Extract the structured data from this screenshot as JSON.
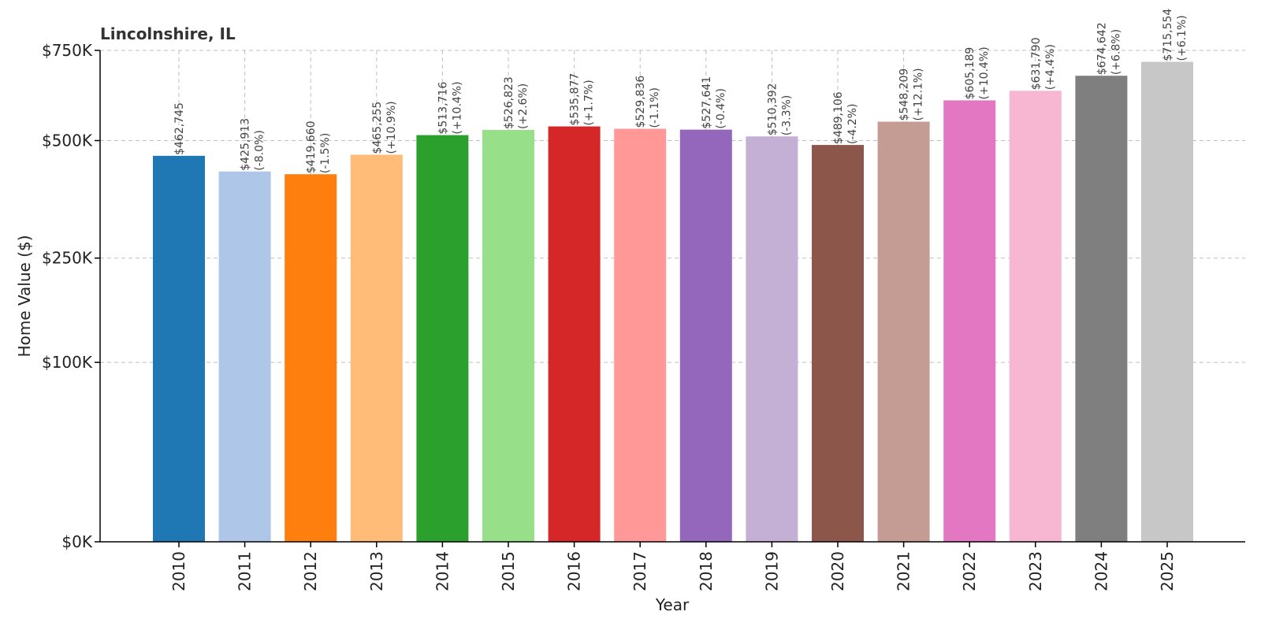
{
  "chart_data": {
    "type": "bar",
    "title": "Lincolnshire, IL",
    "xlabel": "Year",
    "ylabel": "Home Value ($)",
    "ylim": [
      0,
      750000
    ],
    "y_scale": "sqrt",
    "y_ticks": [
      {
        "value": 0,
        "label": "$0K"
      },
      {
        "value": 100000,
        "label": "$100K"
      },
      {
        "value": 250000,
        "label": "$250K"
      },
      {
        "value": 500000,
        "label": "$500K"
      },
      {
        "value": 750000,
        "label": "$750K"
      }
    ],
    "grid": true,
    "categories": [
      "2010",
      "2011",
      "2012",
      "2013",
      "2014",
      "2015",
      "2016",
      "2017",
      "2018",
      "2019",
      "2020",
      "2021",
      "2022",
      "2023",
      "2024",
      "2025"
    ],
    "values": [
      462745,
      425913,
      419660,
      465255,
      513716,
      526823,
      535877,
      529836,
      527641,
      510392,
      489106,
      548209,
      605189,
      631790,
      674642,
      715554
    ],
    "value_labels": [
      "$462,745",
      "$425,913",
      "$419,660",
      "$465,255",
      "$513,716",
      "$526,823",
      "$535,877",
      "$529,836",
      "$527,641",
      "$510,392",
      "$489,106",
      "$548,209",
      "$605,189",
      "$631,790",
      "$674,642",
      "$715,554"
    ],
    "change_labels": [
      "",
      "(-8.0%)",
      "(-1.5%)",
      "(+10.9%)",
      "(+10.4%)",
      "(+2.6%)",
      "(+1.7%)",
      "(-1.1%)",
      "(-0.4%)",
      "(-3.3%)",
      "(-4.2%)",
      "(+12.1%)",
      "(+10.4%)",
      "(+4.4%)",
      "(+6.8%)",
      "(+6.1%)"
    ],
    "colors": [
      "#1f77b4",
      "#aec7e8",
      "#ff7f0e",
      "#ffbb78",
      "#2ca02c",
      "#98df8a",
      "#d62728",
      "#ff9896",
      "#9467bd",
      "#c5b0d5",
      "#8c564b",
      "#c49c94",
      "#e377c2",
      "#f7b6d2",
      "#7f7f7f",
      "#c7c7c7"
    ]
  }
}
